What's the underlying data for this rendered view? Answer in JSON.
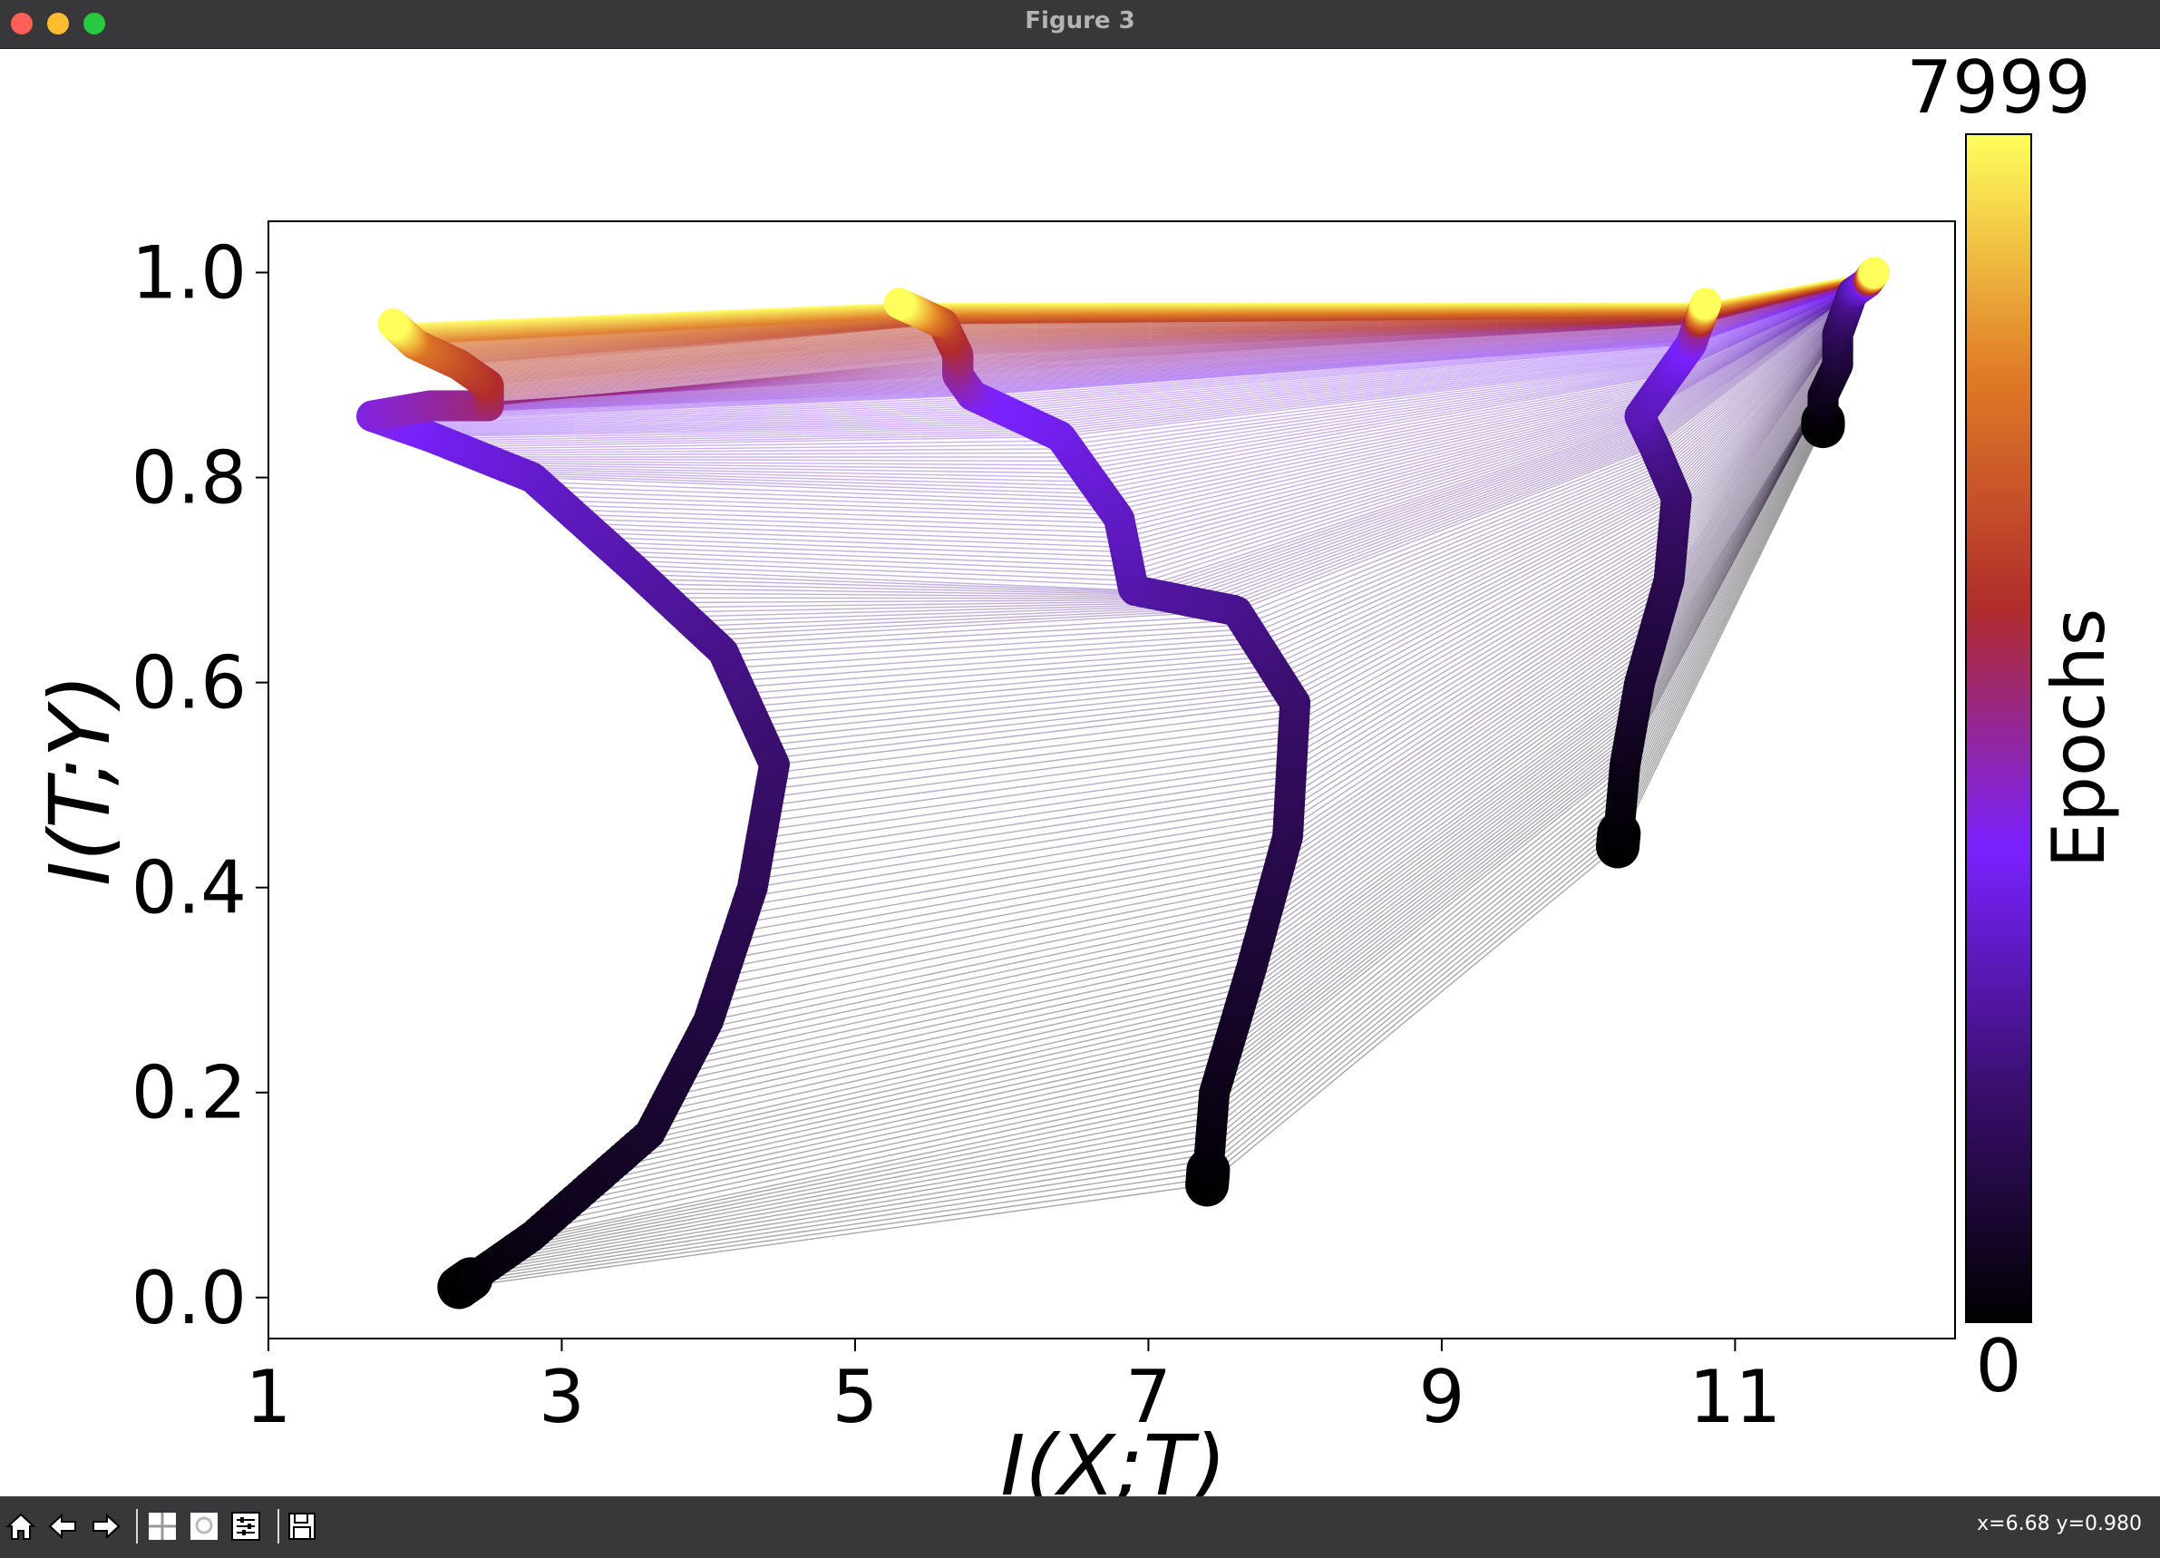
{
  "window": {
    "title": "Figure 3"
  },
  "traffic_lights": {
    "close": "#ff5f57",
    "minimize": "#febc2e",
    "zoom": "#28c840"
  },
  "toolbar": {
    "buttons": [
      "home-icon",
      "back-icon",
      "forward-icon",
      "pan-icon",
      "zoom-icon",
      "configure-subplots-icon",
      "save-icon"
    ],
    "coords_text": "x=6.68 y=0.980"
  },
  "chart_data": {
    "type": "scatter",
    "xlabel": "I(X;T)",
    "ylabel": "I(T;Y)",
    "xlim": [
      1,
      12.5
    ],
    "ylim": [
      -0.04,
      1.05
    ],
    "xticks": [
      1,
      3,
      5,
      7,
      9,
      11
    ],
    "yticks": [
      0.0,
      0.2,
      0.4,
      0.6,
      0.8,
      1.0
    ],
    "ytick_labels": [
      "0.0",
      "0.2",
      "0.4",
      "0.6",
      "0.8",
      "1.0"
    ],
    "colorbar": {
      "label": "Epochs",
      "min_label": "0",
      "max_label": "7999",
      "min": 0,
      "max": 7999,
      "colormap": "gnuplot-like",
      "colors": [
        "#000000",
        "#3b0f70",
        "#7a22ff",
        "#b02c2c",
        "#e07c26",
        "#ffff5c"
      ]
    },
    "layers": [
      {
        "knots": [
          [
            2.3,
            0.01,
            0
          ],
          [
            2.8,
            0.06,
            300
          ],
          [
            3.6,
            0.16,
            600
          ],
          [
            4.0,
            0.27,
            900
          ],
          [
            4.3,
            0.4,
            1200
          ],
          [
            4.45,
            0.52,
            1500
          ],
          [
            4.1,
            0.63,
            1850
          ],
          [
            3.5,
            0.71,
            2200
          ],
          [
            2.8,
            0.8,
            2600
          ],
          [
            2.1,
            0.84,
            3000
          ],
          [
            1.7,
            0.86,
            3400
          ],
          [
            2.1,
            0.87,
            3800
          ],
          [
            2.5,
            0.87,
            4200
          ],
          [
            2.5,
            0.89,
            4700
          ],
          [
            2.3,
            0.91,
            5300
          ],
          [
            2.0,
            0.93,
            6200
          ],
          [
            1.85,
            0.95,
            7999
          ]
        ]
      },
      {
        "knots": [
          [
            7.4,
            0.11,
            0
          ],
          [
            7.45,
            0.2,
            300
          ],
          [
            7.7,
            0.32,
            700
          ],
          [
            7.95,
            0.45,
            1100
          ],
          [
            8.0,
            0.58,
            1500
          ],
          [
            7.6,
            0.67,
            1900
          ],
          [
            6.9,
            0.69,
            2200
          ],
          [
            6.8,
            0.76,
            2500
          ],
          [
            6.4,
            0.84,
            2900
          ],
          [
            5.8,
            0.88,
            3300
          ],
          [
            5.7,
            0.9,
            3800
          ],
          [
            5.7,
            0.92,
            4300
          ],
          [
            5.6,
            0.95,
            5200
          ],
          [
            5.3,
            0.97,
            7999
          ]
        ]
      },
      {
        "knots": [
          [
            10.2,
            0.44,
            0
          ],
          [
            10.25,
            0.52,
            300
          ],
          [
            10.35,
            0.6,
            700
          ],
          [
            10.55,
            0.7,
            1100
          ],
          [
            10.6,
            0.78,
            1500
          ],
          [
            10.45,
            0.83,
            1900
          ],
          [
            10.35,
            0.86,
            2300
          ],
          [
            10.55,
            0.9,
            2700
          ],
          [
            10.7,
            0.93,
            3200
          ],
          [
            10.75,
            0.95,
            4000
          ],
          [
            10.8,
            0.97,
            7999
          ]
        ]
      },
      {
        "knots": [
          [
            11.6,
            0.85,
            0
          ],
          [
            11.6,
            0.88,
            300
          ],
          [
            11.7,
            0.91,
            700
          ],
          [
            11.7,
            0.94,
            1100
          ],
          [
            11.75,
            0.96,
            1500
          ],
          [
            11.8,
            0.98,
            2000
          ],
          [
            11.9,
            0.99,
            3000
          ],
          [
            11.95,
            1.0,
            7999
          ]
        ]
      }
    ]
  }
}
